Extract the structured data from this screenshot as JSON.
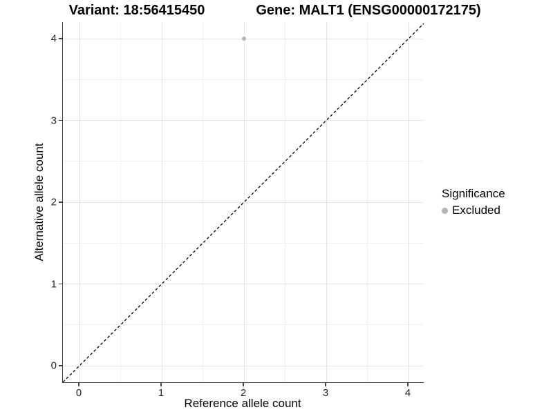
{
  "chart_data": {
    "type": "scatter",
    "title_left": "Variant: 18:56415450",
    "title_right": "Gene: MALT1 (ENSG00000172175)",
    "xlabel": "Reference allele count",
    "ylabel": "Alternative allele count",
    "xlim": [
      -0.2,
      4.2
    ],
    "ylim": [
      -0.2,
      4.2
    ],
    "x_ticks": [
      0,
      1,
      2,
      3,
      4
    ],
    "y_ticks": [
      0,
      1,
      2,
      3,
      4
    ],
    "grid": {
      "major": true,
      "minor": true,
      "minor_step": 0.5
    },
    "points": [
      {
        "x": 2,
        "y": 4,
        "series": "Excluded"
      }
    ],
    "reference_line": {
      "type": "identity",
      "slope": 1,
      "intercept": 0,
      "style": "dashed"
    },
    "legend": {
      "title": "Significance",
      "position": "right",
      "entries": [
        {
          "label": "Excluded",
          "color": "#b3b3b3"
        }
      ]
    }
  },
  "colors": {
    "point": "#b3b3b3",
    "grid_major": "#e2e2e2",
    "grid_minor": "#efefef",
    "axis": "#404040",
    "tick_label": "#262626",
    "reference_line": "#000000"
  }
}
